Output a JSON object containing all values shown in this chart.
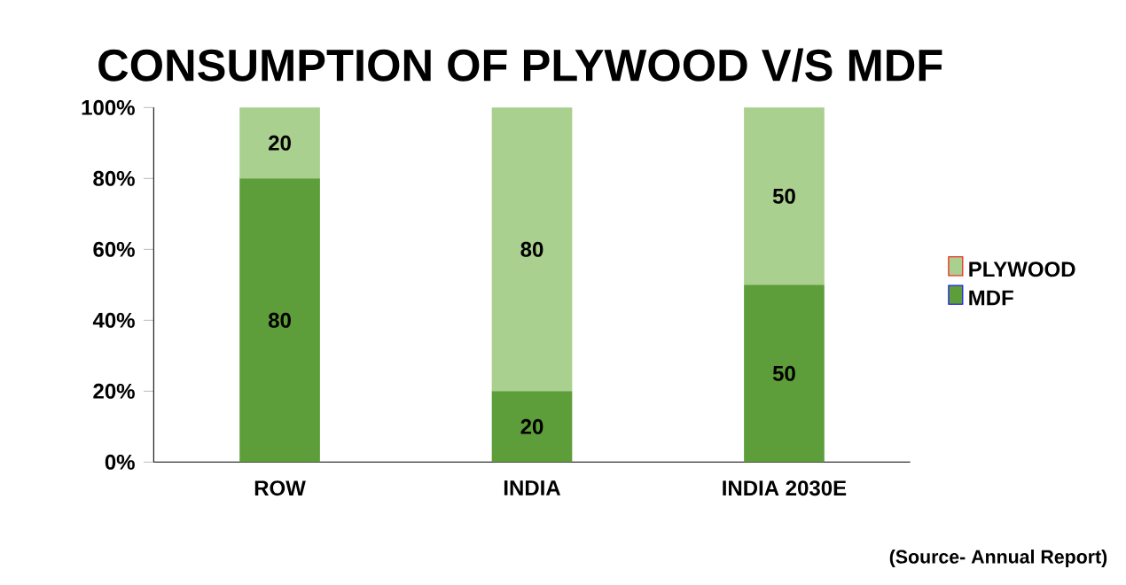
{
  "chart_data": {
    "type": "bar",
    "title": "CONSUMPTION OF PLYWOOD V/S MDF",
    "stacked": true,
    "categories": [
      "ROW",
      "INDIA",
      "INDIA 2030E"
    ],
    "series": [
      {
        "name": "MDF",
        "color": "#5e9e3a",
        "values": [
          80,
          20,
          50
        ]
      },
      {
        "name": "PLYWOOD",
        "color": "#a9d08e",
        "values": [
          20,
          80,
          50
        ]
      }
    ],
    "ylim": [
      0,
      100
    ],
    "yticks": [
      {
        "value": 0,
        "label": "0%"
      },
      {
        "value": 20,
        "label": "20%"
      },
      {
        "value": 40,
        "label": "40%"
      },
      {
        "value": 60,
        "label": "60%"
      },
      {
        "value": 80,
        "label": "80%"
      },
      {
        "value": 100,
        "label": "100%"
      }
    ],
    "data_labels": true,
    "legend": "right",
    "annotations": [
      "(Source- Annual Report)"
    ]
  }
}
